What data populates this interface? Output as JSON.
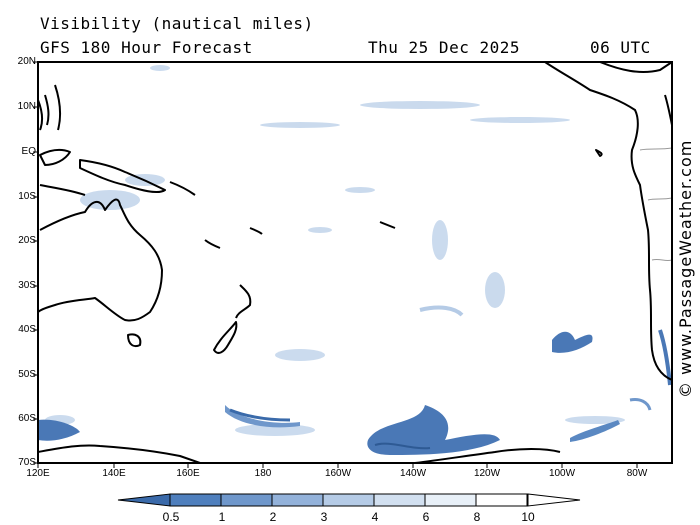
{
  "header": {
    "title": "Visibility (nautical miles)",
    "subtitle": "GFS 180 Hour Forecast",
    "date": "Thu 25 Dec 2025",
    "time": "06 UTC"
  },
  "watermark": "© www.PassageWeather.com",
  "map": {
    "lat_labels": [
      "20N",
      "10N",
      "EQ",
      "10S",
      "20S",
      "30S",
      "40S",
      "50S",
      "60S",
      "70S"
    ],
    "lon_labels": [
      "120E",
      "140E",
      "160E",
      "180",
      "160W",
      "140W",
      "120W",
      "100W",
      "80W"
    ],
    "colors": {
      "land_outline": "#000000",
      "border": "#999999",
      "sea": "#ffffff"
    }
  },
  "colorbar": {
    "labels": [
      "0.5",
      "1",
      "2",
      "3",
      "4",
      "6",
      "8",
      "10"
    ],
    "colors": [
      "#3a6aaa",
      "#4f7fbd",
      "#6f97cb",
      "#93b2da",
      "#b5cbe6",
      "#d2e0f0",
      "#e8f0f8",
      "#ffffff"
    ]
  }
}
